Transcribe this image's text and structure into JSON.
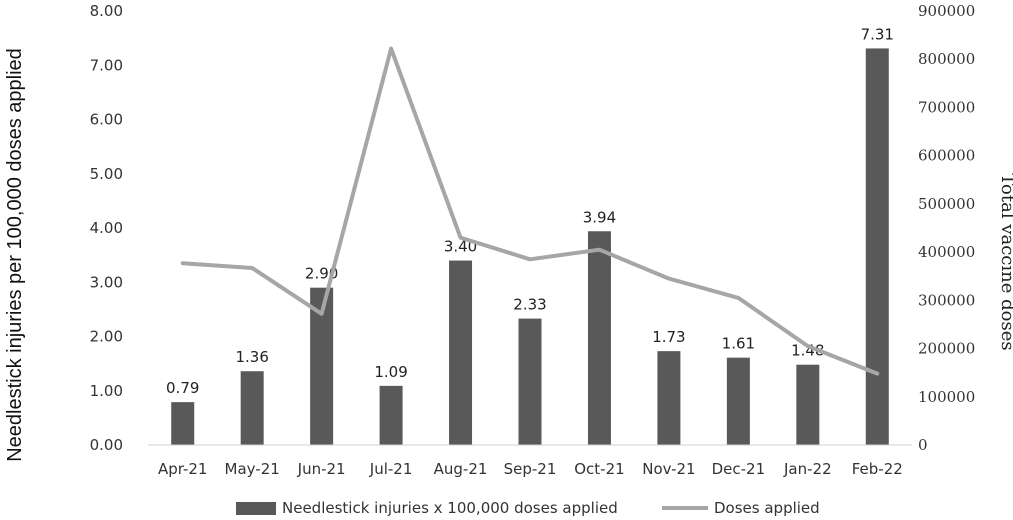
{
  "chart_data": {
    "type": "bar",
    "categories": [
      "Apr-21",
      "May-21",
      "Jun-21",
      "Jul-21",
      "Aug-21",
      "Sep-21",
      "Oct-21",
      "Nov-21",
      "Dec-21",
      "Jan-22",
      "Feb-22"
    ],
    "series": [
      {
        "name": "Needlestick injuries x 100,000 doses applied",
        "type": "bar",
        "axis": "left",
        "color": "#595959",
        "values": [
          0.79,
          1.36,
          2.9,
          1.09,
          3.4,
          2.33,
          3.94,
          1.73,
          1.61,
          1.48,
          7.31
        ],
        "labels": [
          "0.79",
          "1.36",
          "2.90",
          "1.09",
          "3.40",
          "2.33",
          "3.94",
          "1.73",
          "1.61",
          "1.48",
          "7.31"
        ]
      },
      {
        "name": "Doses applied",
        "type": "line",
        "axis": "right",
        "color": "#a6a6a6",
        "values": [
          377000,
          367000,
          272000,
          822000,
          430000,
          385000,
          405000,
          345000,
          305000,
          205000,
          148000
        ]
      }
    ],
    "title": "",
    "xlabel": "",
    "ylabel": "Needlestick injuries per 100,000 doses applied",
    "ylabel_right": "Total vaccine doses",
    "ylim": [
      0,
      8
    ],
    "ylim_right": [
      0,
      900000
    ],
    "yticks": [
      "0.00",
      "1.00",
      "2.00",
      "3.00",
      "4.00",
      "5.00",
      "6.00",
      "7.00",
      "8.00"
    ],
    "yticks_right": [
      "0",
      "100000",
      "200000",
      "300000",
      "400000",
      "500000",
      "600000",
      "700000",
      "800000",
      "900000"
    ],
    "grid": false,
    "legend": "bottom"
  }
}
